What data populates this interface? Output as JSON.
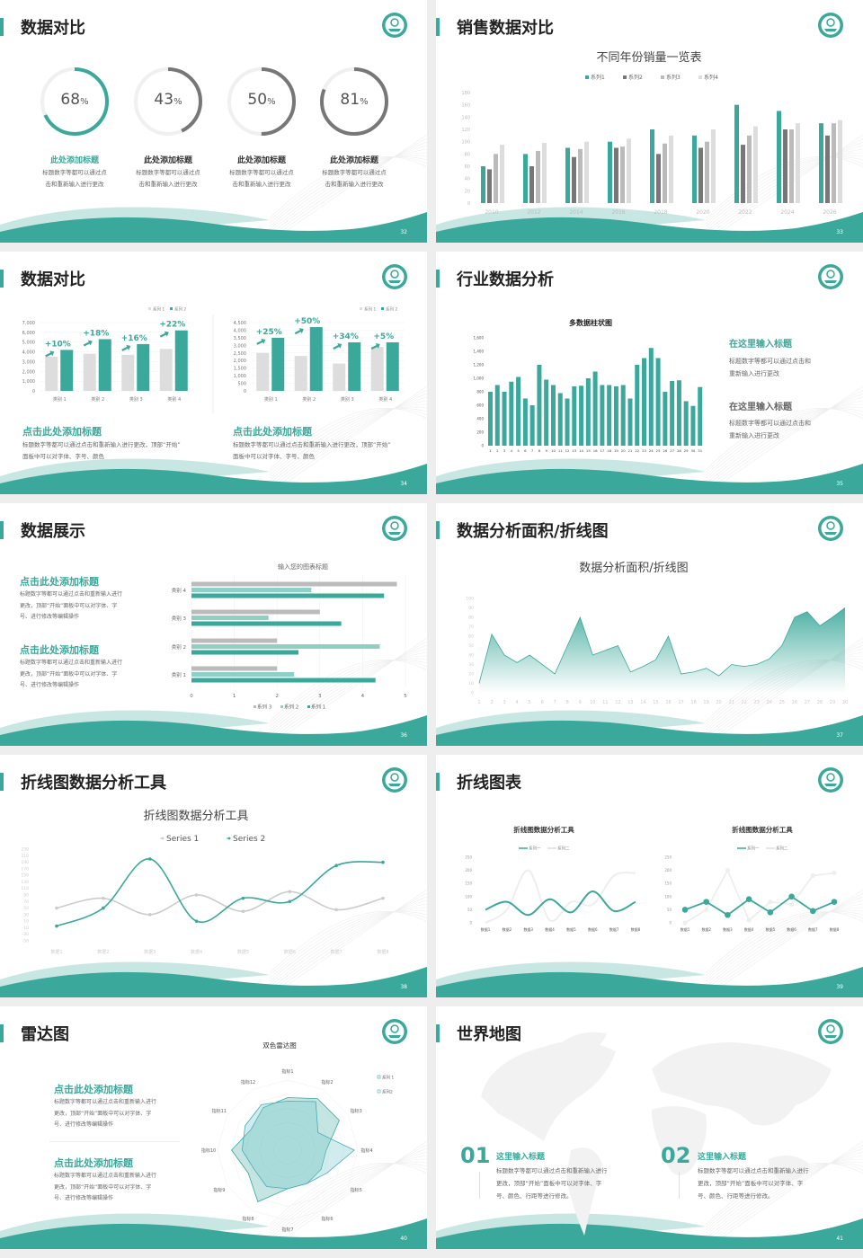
{
  "theme": {
    "accent": "#3aa89a",
    "accent_light": "#8fd0c6",
    "dark_gray": "#777777",
    "mid_gray": "#bbbbbb",
    "light_gray": "#dddddd"
  },
  "slides": [
    {
      "page": "32",
      "title": "数据对比",
      "rings": [
        {
          "value": "68",
          "unit": "%",
          "title": "此处添加标题",
          "desc": [
            "标题数字等都可以通过点",
            "击和重新输入进行更改"
          ],
          "color": "#3aa89a"
        },
        {
          "value": "43",
          "unit": "%",
          "title": "此处添加标题",
          "desc": [
            "标题数字等都可以通过点",
            "击和重新输入进行更改"
          ],
          "color": "#777777"
        },
        {
          "value": "50",
          "unit": "%",
          "title": "此处添加标题",
          "desc": [
            "标题数字等都可以通过点",
            "击和重新输入进行更改"
          ],
          "color": "#777777"
        },
        {
          "value": "81",
          "unit": "%",
          "title": "此处添加标题",
          "desc": [
            "标题数字等都可以通过点",
            "击和重新输入进行更改"
          ],
          "color": "#777777"
        }
      ]
    },
    {
      "page": "33",
      "title": "销售数据对比"
    },
    {
      "page": "34",
      "title": "数据对比",
      "blocks": [
        {
          "title": "点击此处添加标题",
          "desc": [
            "标题数字等都可以通过点击和重新输入进行更改，顶部“开始”",
            "面板中可以对字体、字号、颜色"
          ]
        },
        {
          "title": "点击此处添加标题",
          "desc": [
            "标题数字等都可以通过点击和重新输入进行更改，顶部“开始”",
            "面板中可以对字体、字号、颜色"
          ]
        }
      ]
    },
    {
      "page": "35",
      "title": "行业数据分析",
      "blocks": [
        {
          "title": "在这里输入标题",
          "desc": [
            "标题数字等都可以通过点击和",
            "重新输入进行更改"
          ]
        },
        {
          "title": "在这里输入标题",
          "desc": [
            "标题数字等都可以通过点击和",
            "重新输入进行更改"
          ]
        }
      ]
    },
    {
      "page": "36",
      "title": "数据展示",
      "blocks": [
        {
          "title": "点击此处添加标题",
          "desc": [
            "标题数字等都可以通过点击和重新输入进行",
            "更改，顶部“开始”面板中可以对字体、字",
            "号、进行修改等编辑操作"
          ]
        },
        {
          "title": "点击此处添加标题",
          "desc": [
            "标题数字等都可以通过点击和重新输入进行",
            "更改，顶部“开始”面板中可以对字体、字",
            "号、进行修改等编辑操作"
          ]
        }
      ]
    },
    {
      "page": "37",
      "title": "数据分析面积/折线图"
    },
    {
      "page": "38",
      "title": "折线图数据分析工具"
    },
    {
      "page": "39",
      "title": "折线图表"
    },
    {
      "page": "40",
      "title": "雷达图",
      "blocks": [
        {
          "title": "点击此处添加标题",
          "desc": [
            "标题数字等都可以通过点击和重新输入进行",
            "更改，顶部“开始”面板中可以对字体、字",
            "号、进行修改等编辑操作"
          ]
        },
        {
          "title": "点击此处添加标题",
          "desc": [
            "标题数字等都可以通过点击和重新输入进行",
            "更改，顶部“开始”面板中可以对字体、字",
            "号、进行修改等编辑操作"
          ]
        }
      ]
    },
    {
      "page": "41",
      "title": "世界地图",
      "blocks": [
        {
          "num": "01",
          "title": "这里输入标题",
          "desc": [
            "标题数字等都可以通过点击和重新输入进行",
            "更改，顶部“开始”面板中可以对字体、字",
            "号、颜色、行距等进行修改。"
          ]
        },
        {
          "num": "02",
          "title": "这里输入标题",
          "desc": [
            "标题数字等都可以通过点击和重新输入进行",
            "更改，顶部“开始”面板中可以对字体、字",
            "号、颜色、行距等进行修改。"
          ]
        }
      ]
    }
  ],
  "chart_data": [
    {
      "slide": "32",
      "type": "pie",
      "values": [
        68,
        43,
        50,
        81
      ],
      "unit": "%"
    },
    {
      "slide": "33",
      "type": "bar",
      "title": "不同年份销量一览表",
      "categories": [
        "2010",
        "2012",
        "2014",
        "2016",
        "2018",
        "2020",
        "2022",
        "2024",
        "2026"
      ],
      "ylim": [
        0,
        180
      ],
      "yticks": [
        0,
        20,
        40,
        60,
        80,
        100,
        120,
        140,
        160,
        180
      ],
      "legend": "top",
      "series": [
        {
          "name": "系列1",
          "color": "#3aa89a",
          "values": [
            60,
            80,
            90,
            100,
            120,
            110,
            160,
            150,
            130
          ]
        },
        {
          "name": "系列2",
          "color": "#777777",
          "values": [
            55,
            60,
            75,
            90,
            80,
            90,
            95,
            120,
            110
          ]
        },
        {
          "name": "系列3",
          "color": "#bbbbbb",
          "values": [
            80,
            85,
            88,
            92,
            97,
            100,
            110,
            120,
            130
          ]
        },
        {
          "name": "系列4",
          "color": "#dddddd",
          "values": [
            95,
            98,
            100,
            105,
            110,
            120,
            125,
            130,
            135
          ]
        }
      ]
    },
    {
      "slide": "34",
      "type": "bar",
      "categories": [
        "类别 1",
        "类别 2",
        "类别 3",
        "类别 4"
      ],
      "ylim": [
        0,
        7000
      ],
      "yticks": [
        0,
        1000,
        2000,
        3000,
        4000,
        5000,
        6000,
        7000
      ],
      "legend": "top-right",
      "series": [
        {
          "name": "系列 1",
          "color": "#dddddd",
          "values": [
            3500,
            3800,
            3700,
            4300
          ]
        },
        {
          "name": "系列 2",
          "color": "#3aa89a",
          "values": [
            4200,
            5300,
            4800,
            6200
          ]
        }
      ],
      "annotations": [
        "+10%",
        "+18%",
        "+16%",
        "+22%"
      ]
    },
    {
      "slide": "34",
      "type": "bar",
      "categories": [
        "类别 1",
        "类别 2",
        "类别 3",
        "类别 4"
      ],
      "ylim": [
        0,
        4500
      ],
      "yticks": [
        0,
        500,
        1000,
        1500,
        2000,
        2500,
        3000,
        3500,
        4000,
        4500
      ],
      "legend": "top-right",
      "series": [
        {
          "name": "系列 1",
          "color": "#dddddd",
          "values": [
            2500,
            2300,
            1800,
            2900
          ]
        },
        {
          "name": "系列 2",
          "color": "#3aa89a",
          "values": [
            3500,
            4200,
            3200,
            3200
          ]
        }
      ],
      "annotations": [
        "+25%",
        "+50%",
        "+34%",
        "+5%"
      ]
    },
    {
      "slide": "35",
      "type": "bar",
      "title": "多数据柱状图",
      "categories": [
        "1",
        "2",
        "3",
        "4",
        "5",
        "6",
        "7",
        "8",
        "9",
        "10",
        "11",
        "12",
        "13",
        "14",
        "15",
        "16",
        "17",
        "18",
        "19",
        "20",
        "21",
        "22",
        "23",
        "24",
        "25",
        "26",
        "27",
        "28",
        "29",
        "30",
        "31"
      ],
      "ylim": [
        0,
        1600
      ],
      "yticks": [
        0,
        200,
        400,
        600,
        800,
        1000,
        1200,
        1400,
        1600
      ],
      "values": [
        800,
        900,
        800,
        950,
        1020,
        700,
        600,
        1200,
        980,
        900,
        780,
        700,
        880,
        890,
        1000,
        1100,
        900,
        900,
        880,
        900,
        700,
        1200,
        1300,
        1450,
        1300,
        800,
        960,
        970,
        660,
        590,
        870
      ]
    },
    {
      "slide": "36",
      "type": "bar",
      "orientation": "horizontal",
      "title": "输入您的图表标题",
      "categories": [
        "类别 1",
        "类别 2",
        "类别 3",
        "类别 4"
      ],
      "xlim": [
        0,
        5
      ],
      "xticks": [
        0,
        1,
        2,
        3,
        4,
        5
      ],
      "legend": "bottom",
      "series": [
        {
          "name": "系列 3",
          "color": "#bbbbbb",
          "values": [
            2,
            2,
            3,
            4.8
          ]
        },
        {
          "name": "系列 2",
          "color": "#8fd0c6",
          "values": [
            2.4,
            4.4,
            1.8,
            2.8
          ]
        },
        {
          "name": "系列 1",
          "color": "#3aa89a",
          "values": [
            4.3,
            2.5,
            3.5,
            4.5
          ]
        }
      ]
    },
    {
      "slide": "37",
      "type": "area",
      "title": "数据分析面积/折线图",
      "x": [
        1,
        2,
        3,
        4,
        5,
        6,
        7,
        8,
        9,
        10,
        11,
        12,
        13,
        14,
        15,
        16,
        17,
        18,
        19,
        20,
        21,
        22,
        23,
        24,
        25,
        26,
        27,
        28,
        29,
        30
      ],
      "ylim": [
        0,
        100
      ],
      "yticks": [
        0,
        10,
        20,
        30,
        40,
        50,
        60,
        70,
        80,
        90,
        100
      ],
      "values": [
        10,
        62,
        40,
        32,
        40,
        30,
        20,
        50,
        80,
        40,
        45,
        50,
        22,
        28,
        35,
        60,
        20,
        22,
        26,
        18,
        30,
        28,
        30,
        36,
        50,
        80,
        86,
        71,
        80,
        90
      ]
    },
    {
      "slide": "38",
      "type": "line",
      "title": "折线图数据分析工具",
      "categories": [
        "数据1",
        "数据2",
        "数据3",
        "数据4",
        "数据5",
        "数据6",
        "数据7",
        "数据8"
      ],
      "ylim": [
        -50,
        230
      ],
      "yticks": [
        -50,
        -30,
        -10,
        10,
        30,
        50,
        70,
        90,
        110,
        130,
        150,
        170,
        190,
        210,
        230
      ],
      "legend": "top",
      "series": [
        {
          "name": "Series 1",
          "color": "#cccccc",
          "values": [
            50,
            80,
            30,
            90,
            40,
            100,
            45,
            80
          ]
        },
        {
          "name": "Series 2",
          "color": "#3aa89a",
          "values": [
            -5,
            50,
            200,
            10,
            80,
            70,
            180,
            190
          ]
        }
      ]
    },
    {
      "slide": "39",
      "type": "line",
      "title": "折线图数据分析工具",
      "categories": [
        "数据1",
        "数据2",
        "数据3",
        "数据4",
        "数据5",
        "数据6",
        "数据7",
        "数据8"
      ],
      "ylim": [
        0,
        250
      ],
      "yticks": [
        0,
        50,
        100,
        150,
        200,
        250
      ],
      "legend": "top",
      "smooth": true,
      "series": [
        {
          "name": "系列一",
          "color": "#3aa89a",
          "values": [
            50,
            80,
            30,
            90,
            40,
            120,
            45,
            80
          ]
        },
        {
          "name": "系列二",
          "color": "#eeeeee",
          "values": [
            0,
            50,
            200,
            10,
            80,
            70,
            180,
            190
          ]
        }
      ]
    },
    {
      "slide": "39",
      "type": "line",
      "title": "折线图数据分析工具",
      "categories": [
        "数据1",
        "数据2",
        "数据3",
        "数据4",
        "数据5",
        "数据6",
        "数据7",
        "数据8"
      ],
      "ylim": [
        0,
        250
      ],
      "yticks": [
        0,
        50,
        100,
        150,
        200,
        250
      ],
      "legend": "top",
      "markers": true,
      "series": [
        {
          "name": "系列一",
          "color": "#3aa89a",
          "values": [
            50,
            80,
            30,
            90,
            40,
            100,
            45,
            80
          ]
        },
        {
          "name": "系列二",
          "color": "#eeeeee",
          "values": [
            0,
            50,
            200,
            10,
            80,
            70,
            180,
            190
          ]
        }
      ]
    },
    {
      "slide": "40",
      "type": "radar",
      "title": "双色雷达图",
      "categories": [
        "指标1",
        "指标2",
        "指标3",
        "指标4",
        "指标5",
        "指标6",
        "指标7",
        "指标8",
        "指标9",
        "指标10",
        "指标11",
        "指标12"
      ],
      "legend": "right",
      "series": [
        {
          "name": "系列 1",
          "color": "#3aa89a",
          "values": [
            75,
            85,
            85,
            55,
            55,
            55,
            55,
            85,
            65,
            80,
            60,
            70
          ]
        },
        {
          "name": "系列2",
          "color": "#4aaab8",
          "values": [
            70,
            80,
            50,
            95,
            65,
            55,
            55,
            60,
            55,
            65,
            70,
            75
          ]
        }
      ]
    }
  ]
}
